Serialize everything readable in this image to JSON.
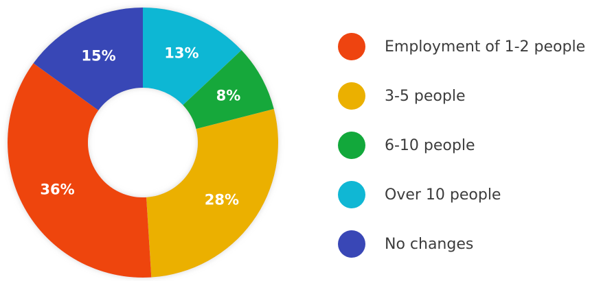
{
  "chart_data": {
    "type": "pie",
    "donut": true,
    "categories": [
      "Employment of 1-2 people",
      "3-5 people",
      "6-10 people",
      "Over 10 people",
      "No changes"
    ],
    "values": [
      36,
      28,
      8,
      13,
      15
    ],
    "value_labels": [
      "36%",
      "28%",
      "8%",
      "13%",
      "15%"
    ],
    "colors": [
      "#ee4410",
      "#ebb000",
      "#12a83b",
      "#10b7d4",
      "#3947b6"
    ],
    "slice_order_clockwise_from_top": [
      "Over 10 people",
      "6-10 people",
      "3-5 people",
      "Employment of 1-2 people",
      "No changes"
    ],
    "legend_position": "right",
    "title": ""
  },
  "legend": {
    "items": [
      {
        "label": "Employment of 1-2 people",
        "color": "#ee4410"
      },
      {
        "label": "3-5 people",
        "color": "#ebb000"
      },
      {
        "label": "6-10 people",
        "color": "#12a83b"
      },
      {
        "label": "Over 10 people",
        "color": "#10b7d4"
      },
      {
        "label": "No changes",
        "color": "#3947b6"
      }
    ]
  }
}
